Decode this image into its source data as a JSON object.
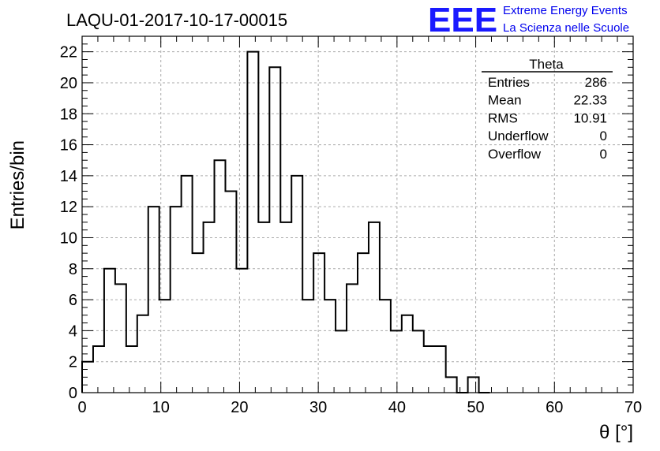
{
  "title": "LAQU-01-2017-10-17-00015",
  "logo": {
    "mark": "EEE",
    "line1": "Extreme Energy Events",
    "line2": "La Scienza nelle Scuole",
    "color": "#0000ee"
  },
  "stats": {
    "name": "Theta",
    "rows": [
      {
        "label": "Entries",
        "value": "286"
      },
      {
        "label": "Mean",
        "value": "22.33"
      },
      {
        "label": "RMS",
        "value": "10.91"
      },
      {
        "label": "Underflow",
        "value": "0"
      },
      {
        "label": "Overflow",
        "value": "0"
      }
    ]
  },
  "chart_data": {
    "type": "bar",
    "style": "step-histogram",
    "title": "LAQU-01-2017-10-17-00015",
    "xlabel": "θ [°]",
    "ylabel": "Entries/bin",
    "xlim": [
      0,
      70
    ],
    "ylim": [
      0,
      23
    ],
    "grid": true,
    "x_ticks": [
      0,
      10,
      20,
      30,
      40,
      50,
      60,
      70
    ],
    "y_ticks": [
      0,
      2,
      4,
      6,
      8,
      10,
      12,
      14,
      16,
      18,
      20,
      22
    ],
    "bin_edges": [
      0,
      1.4,
      2.8,
      4.2,
      5.6,
      7.0,
      8.4,
      9.8,
      11.2,
      12.6,
      14.0,
      15.4,
      16.8,
      18.2,
      19.6,
      21.0,
      22.4,
      23.8,
      25.2,
      26.6,
      28.0,
      29.4,
      30.8,
      32.2,
      33.6,
      35.0,
      36.4,
      37.8,
      39.2,
      40.6,
      42.0,
      43.4,
      44.8,
      46.2,
      47.6,
      49.0,
      50.4,
      51.8
    ],
    "values": [
      2,
      3,
      8,
      7,
      3,
      5,
      12,
      6,
      12,
      14,
      9,
      11,
      15,
      13,
      8,
      22,
      11,
      21,
      11,
      14,
      6,
      9,
      6,
      4,
      7,
      9,
      11,
      6,
      4,
      5,
      4,
      3,
      3,
      1,
      0,
      1,
      0
    ]
  }
}
